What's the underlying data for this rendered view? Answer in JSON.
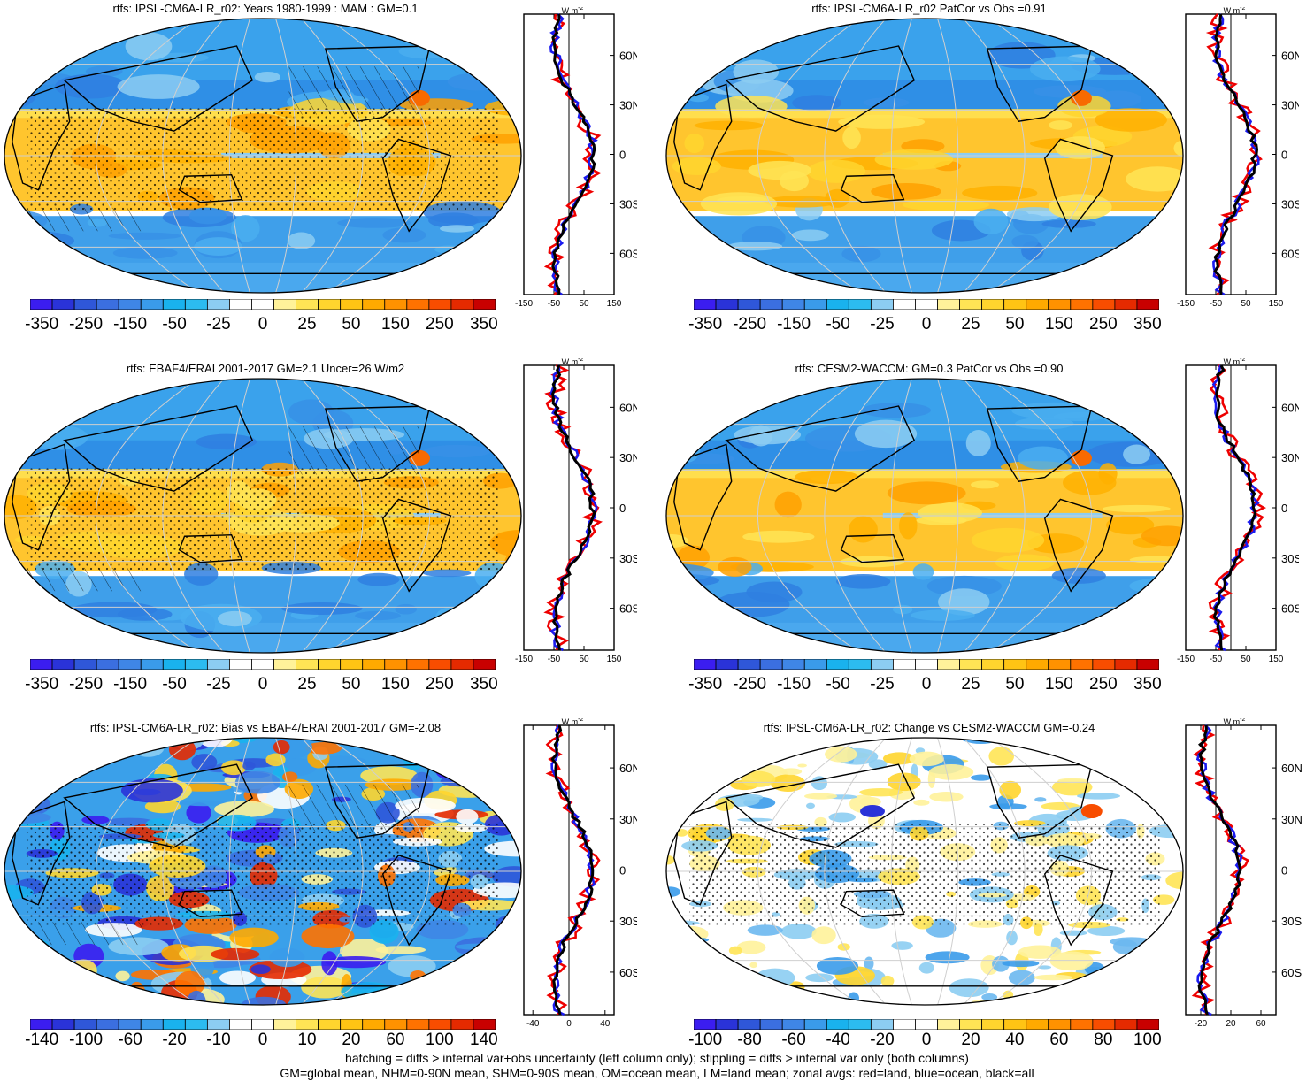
{
  "panels": [
    {
      "id": "p1",
      "title": "rtfs: IPSL-CM6A-LR_r02: Years 1980-1999 : MAM : GM=0.1",
      "palette": "main",
      "hatch": true,
      "stipple": true,
      "cbar_labels": [
        "-350",
        "-250",
        "-150",
        "-50",
        "-25",
        "0",
        "25",
        "50",
        "150",
        "250",
        "350"
      ],
      "zonal_xticks": [
        "-150",
        "-50",
        "50",
        "150"
      ],
      "zonal_xrange": [
        -150,
        150
      ]
    },
    {
      "id": "p2",
      "title": "rtfs: IPSL-CM6A-LR_r02 PatCor vs Obs =0.91",
      "palette": "main",
      "hatch": false,
      "stipple": false,
      "cbar_labels": [
        "-350",
        "-250",
        "-150",
        "-50",
        "-25",
        "0",
        "25",
        "50",
        "150",
        "250",
        "350"
      ],
      "zonal_xticks": [
        "-150",
        "-50",
        "50",
        "150"
      ],
      "zonal_xrange": [
        -150,
        150
      ]
    },
    {
      "id": "p3",
      "title": "rtfs: EBAF4/ERAI 2001-2017 GM=2.1 Uncer=26 W/m2",
      "palette": "main",
      "hatch": true,
      "stipple": true,
      "cbar_labels": [
        "-350",
        "-250",
        "-150",
        "-50",
        "-25",
        "0",
        "25",
        "50",
        "150",
        "250",
        "350"
      ],
      "zonal_xticks": [
        "-150",
        "-50",
        "50",
        "150"
      ],
      "zonal_xrange": [
        -150,
        150
      ]
    },
    {
      "id": "p4",
      "title": "rtfs: CESM2-WACCM: GM=0.3 PatCor vs Obs =0.90",
      "palette": "main",
      "hatch": false,
      "stipple": false,
      "cbar_labels": [
        "-350",
        "-250",
        "-150",
        "-50",
        "-25",
        "0",
        "25",
        "50",
        "150",
        "250",
        "350"
      ],
      "zonal_xticks": [
        "-150",
        "-50",
        "50",
        "150"
      ],
      "zonal_xrange": [
        -150,
        150
      ]
    },
    {
      "id": "p5",
      "title": "rtfs: IPSL-CM6A-LR_r02: Bias vs EBAF4/ERAI 2001-2017 GM=-2.08",
      "palette": "bias",
      "hatch": true,
      "stipple": true,
      "cbar_labels": [
        "-140",
        "-100",
        "-60",
        "-20",
        "-10",
        "0",
        "10",
        "20",
        "60",
        "100",
        "140"
      ],
      "zonal_xticks": [
        "-40",
        "0",
        "40"
      ],
      "zonal_xrange": [
        -50,
        50
      ]
    },
    {
      "id": "p6",
      "title": "rtfs: IPSL-CM6A-LR_r02: Change vs CESM2-WACCM GM=-0.24",
      "palette": "change",
      "hatch": false,
      "stipple": true,
      "cbar_labels": [
        "-100",
        "-80",
        "-60",
        "-40",
        "-20",
        "0",
        "20",
        "40",
        "60",
        "80",
        "100"
      ],
      "zonal_xticks": [
        "-20",
        "20",
        "60"
      ],
      "zonal_xrange": [
        -40,
        80
      ]
    }
  ],
  "zonal_unit": "W m",
  "zonal_unit_exp": "-2",
  "lat_labels": [
    "60N",
    "30N",
    "0",
    "30S",
    "60S"
  ],
  "colors": {
    "red_land": "#ee0000",
    "blue_ocean": "#1a1aee",
    "black_all": "#000000",
    "main_palette": [
      "#3b1df0",
      "#2a33d8",
      "#2f57d9",
      "#3b6fe0",
      "#3f86e6",
      "#3a9bea",
      "#19b2ee",
      "#2cbcf0",
      "#8ccdf2",
      "#ffffff",
      "#ffffff",
      "#fff29a",
      "#ffe455",
      "#ffd52e",
      "#ffc414",
      "#ffaa00",
      "#ff9200",
      "#ff7200",
      "#f84d00",
      "#e52a00",
      "#c80000"
    ],
    "ocean_cool": "#3fa0ea",
    "ocean_warm": "#ffc02a",
    "land": "#f6c453",
    "coast": "#000000",
    "grid": "#cfcfcf"
  },
  "footer": {
    "line1": "hatching = diffs > internal var+obs uncertainty (left column only); stippling = diffs > internal var only (both columns)",
    "line2": "GM=global mean, NHM=0-90N mean, SHM=0-90S mean, OM=ocean mean, LM=land mean; zonal avgs: red=land, blue=ocean, black=all"
  }
}
